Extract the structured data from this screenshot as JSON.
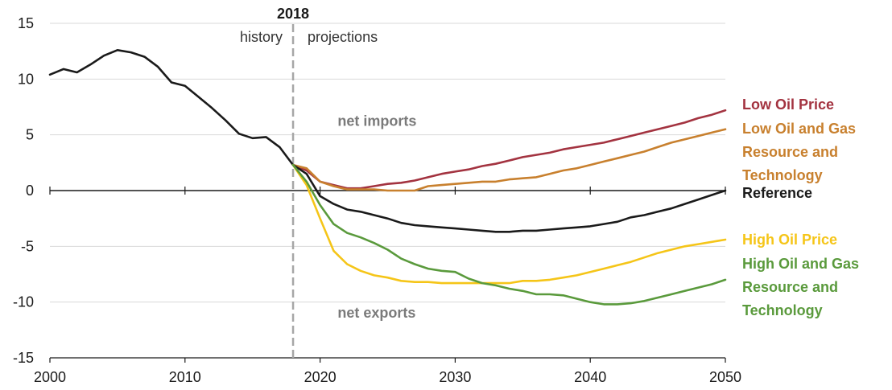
{
  "chart_data": {
    "type": "line",
    "title": "",
    "xlabel": "",
    "ylabel": "",
    "xlim": [
      2000,
      2050
    ],
    "ylim": [
      -15,
      15
    ],
    "x_ticks": [
      "2000",
      "2010",
      "2020",
      "2030",
      "2040",
      "2050"
    ],
    "y_ticks": [
      "15",
      "10",
      "5",
      "0",
      "-5",
      "-10",
      "-15"
    ],
    "grid": "horizontal",
    "divider": {
      "year": 2018,
      "label": "2018",
      "left_label": "history",
      "right_label": "projections"
    },
    "region_labels": {
      "top": "net imports",
      "bottom": "net exports"
    },
    "series": [
      {
        "name": "Low Oil Price",
        "legend_lines": [
          "Low Oil Price"
        ],
        "color": "#a33340",
        "points": [
          [
            2018,
            2.3
          ],
          [
            2019,
            1.8
          ],
          [
            2020,
            0.8
          ],
          [
            2021,
            0.5
          ],
          [
            2022,
            0.2
          ],
          [
            2023,
            0.2
          ],
          [
            2024,
            0.4
          ],
          [
            2025,
            0.6
          ],
          [
            2026,
            0.7
          ],
          [
            2027,
            0.9
          ],
          [
            2028,
            1.2
          ],
          [
            2029,
            1.5
          ],
          [
            2030,
            1.7
          ],
          [
            2031,
            1.9
          ],
          [
            2032,
            2.2
          ],
          [
            2033,
            2.4
          ],
          [
            2034,
            2.7
          ],
          [
            2035,
            3.0
          ],
          [
            2036,
            3.2
          ],
          [
            2037,
            3.4
          ],
          [
            2038,
            3.7
          ],
          [
            2039,
            3.9
          ],
          [
            2040,
            4.1
          ],
          [
            2041,
            4.3
          ],
          [
            2042,
            4.6
          ],
          [
            2043,
            4.9
          ],
          [
            2044,
            5.2
          ],
          [
            2045,
            5.5
          ],
          [
            2046,
            5.8
          ],
          [
            2047,
            6.1
          ],
          [
            2048,
            6.5
          ],
          [
            2049,
            6.8
          ],
          [
            2050,
            7.2
          ]
        ]
      },
      {
        "name": "Low Oil and Gas Resource and Technology",
        "legend_lines": [
          "Low Oil and Gas",
          "Resource and",
          "Technology"
        ],
        "color": "#c8802e",
        "points": [
          [
            2018,
            2.3
          ],
          [
            2019,
            2.0
          ],
          [
            2020,
            0.8
          ],
          [
            2021,
            0.4
          ],
          [
            2022,
            0.1
          ],
          [
            2023,
            0.1
          ],
          [
            2024,
            0.1
          ],
          [
            2025,
            0.0
          ],
          [
            2026,
            0.0
          ],
          [
            2027,
            0.0
          ],
          [
            2028,
            0.4
          ],
          [
            2029,
            0.5
          ],
          [
            2030,
            0.6
          ],
          [
            2031,
            0.7
          ],
          [
            2032,
            0.8
          ],
          [
            2033,
            0.8
          ],
          [
            2034,
            1.0
          ],
          [
            2035,
            1.1
          ],
          [
            2036,
            1.2
          ],
          [
            2037,
            1.5
          ],
          [
            2038,
            1.8
          ],
          [
            2039,
            2.0
          ],
          [
            2040,
            2.3
          ],
          [
            2041,
            2.6
          ],
          [
            2042,
            2.9
          ],
          [
            2043,
            3.2
          ],
          [
            2044,
            3.5
          ],
          [
            2045,
            3.9
          ],
          [
            2046,
            4.3
          ],
          [
            2047,
            4.6
          ],
          [
            2048,
            4.9
          ],
          [
            2049,
            5.2
          ],
          [
            2050,
            5.5
          ]
        ]
      },
      {
        "name": "Reference",
        "legend_lines": [
          "Reference"
        ],
        "color": "#1a1a1a",
        "points": [
          [
            2000,
            10.4
          ],
          [
            2001,
            10.9
          ],
          [
            2002,
            10.6
          ],
          [
            2003,
            11.3
          ],
          [
            2004,
            12.1
          ],
          [
            2005,
            12.6
          ],
          [
            2006,
            12.4
          ],
          [
            2007,
            12.0
          ],
          [
            2008,
            11.1
          ],
          [
            2009,
            9.7
          ],
          [
            2010,
            9.4
          ],
          [
            2011,
            8.4
          ],
          [
            2012,
            7.4
          ],
          [
            2013,
            6.3
          ],
          [
            2014,
            5.1
          ],
          [
            2015,
            4.7
          ],
          [
            2016,
            4.8
          ],
          [
            2017,
            3.9
          ],
          [
            2018,
            2.3
          ],
          [
            2019,
            1.5
          ],
          [
            2020,
            -0.5
          ],
          [
            2021,
            -1.2
          ],
          [
            2022,
            -1.7
          ],
          [
            2023,
            -1.9
          ],
          [
            2024,
            -2.2
          ],
          [
            2025,
            -2.5
          ],
          [
            2026,
            -2.9
          ],
          [
            2027,
            -3.1
          ],
          [
            2028,
            -3.2
          ],
          [
            2029,
            -3.3
          ],
          [
            2030,
            -3.4
          ],
          [
            2031,
            -3.5
          ],
          [
            2032,
            -3.6
          ],
          [
            2033,
            -3.7
          ],
          [
            2034,
            -3.7
          ],
          [
            2035,
            -3.6
          ],
          [
            2036,
            -3.6
          ],
          [
            2037,
            -3.5
          ],
          [
            2038,
            -3.4
          ],
          [
            2039,
            -3.3
          ],
          [
            2040,
            -3.2
          ],
          [
            2041,
            -3.0
          ],
          [
            2042,
            -2.8
          ],
          [
            2043,
            -2.4
          ],
          [
            2044,
            -2.2
          ],
          [
            2045,
            -1.9
          ],
          [
            2046,
            -1.6
          ],
          [
            2047,
            -1.2
          ],
          [
            2048,
            -0.8
          ],
          [
            2049,
            -0.4
          ],
          [
            2050,
            0.0
          ]
        ]
      },
      {
        "name": "High Oil Price",
        "legend_lines": [
          "High Oil Price"
        ],
        "color": "#f5c518",
        "points": [
          [
            2018,
            2.3
          ],
          [
            2019,
            0.5
          ],
          [
            2020,
            -2.5
          ],
          [
            2021,
            -5.4
          ],
          [
            2022,
            -6.6
          ],
          [
            2023,
            -7.2
          ],
          [
            2024,
            -7.6
          ],
          [
            2025,
            -7.8
          ],
          [
            2026,
            -8.1
          ],
          [
            2027,
            -8.2
          ],
          [
            2028,
            -8.2
          ],
          [
            2029,
            -8.3
          ],
          [
            2030,
            -8.3
          ],
          [
            2031,
            -8.3
          ],
          [
            2032,
            -8.3
          ],
          [
            2033,
            -8.3
          ],
          [
            2034,
            -8.3
          ],
          [
            2035,
            -8.1
          ],
          [
            2036,
            -8.1
          ],
          [
            2037,
            -8.0
          ],
          [
            2038,
            -7.8
          ],
          [
            2039,
            -7.6
          ],
          [
            2040,
            -7.3
          ],
          [
            2041,
            -7.0
          ],
          [
            2042,
            -6.7
          ],
          [
            2043,
            -6.4
          ],
          [
            2044,
            -6.0
          ],
          [
            2045,
            -5.6
          ],
          [
            2046,
            -5.3
          ],
          [
            2047,
            -5.0
          ],
          [
            2048,
            -4.8
          ],
          [
            2049,
            -4.6
          ],
          [
            2050,
            -4.4
          ]
        ]
      },
      {
        "name": "High Oil and Gas Resource and Technology",
        "legend_lines": [
          "High Oil and Gas",
          "Resource and",
          "Technology"
        ],
        "color": "#5a9a3c",
        "points": [
          [
            2018,
            2.3
          ],
          [
            2019,
            0.8
          ],
          [
            2020,
            -1.3
          ],
          [
            2021,
            -3.0
          ],
          [
            2022,
            -3.8
          ],
          [
            2023,
            -4.2
          ],
          [
            2024,
            -4.7
          ],
          [
            2025,
            -5.3
          ],
          [
            2026,
            -6.1
          ],
          [
            2027,
            -6.6
          ],
          [
            2028,
            -7.0
          ],
          [
            2029,
            -7.2
          ],
          [
            2030,
            -7.3
          ],
          [
            2031,
            -7.9
          ],
          [
            2032,
            -8.3
          ],
          [
            2033,
            -8.5
          ],
          [
            2034,
            -8.8
          ],
          [
            2035,
            -9.0
          ],
          [
            2036,
            -9.3
          ],
          [
            2037,
            -9.3
          ],
          [
            2038,
            -9.4
          ],
          [
            2039,
            -9.7
          ],
          [
            2040,
            -10.0
          ],
          [
            2041,
            -10.2
          ],
          [
            2042,
            -10.2
          ],
          [
            2043,
            -10.1
          ],
          [
            2044,
            -9.9
          ],
          [
            2045,
            -9.6
          ],
          [
            2046,
            -9.3
          ],
          [
            2047,
            -9.0
          ],
          [
            2048,
            -8.7
          ],
          [
            2049,
            -8.4
          ],
          [
            2050,
            -8.0
          ]
        ]
      }
    ]
  }
}
